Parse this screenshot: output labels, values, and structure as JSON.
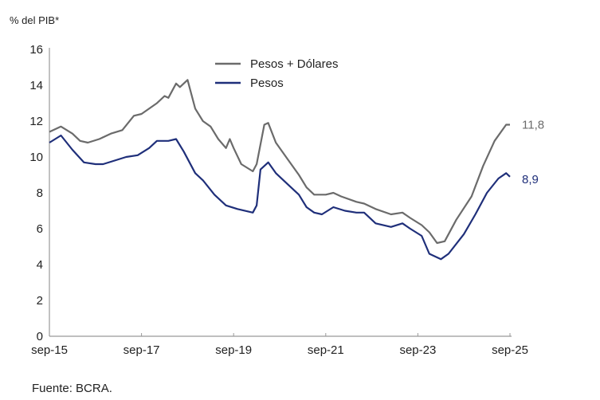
{
  "chart_data": {
    "type": "line",
    "ylabel": "% del PIB*",
    "ylim": [
      0,
      16
    ],
    "yticks": [
      0,
      2,
      4,
      6,
      8,
      10,
      12,
      14,
      16
    ],
    "x_unit": "months since sep-15",
    "xlim": [
      0,
      120
    ],
    "xticks": [
      {
        "x": 0,
        "label": "sep-15"
      },
      {
        "x": 24,
        "label": "sep-17"
      },
      {
        "x": 48,
        "label": "sep-19"
      },
      {
        "x": 72,
        "label": "sep-21"
      },
      {
        "x": 96,
        "label": "sep-23"
      },
      {
        "x": 120,
        "label": "sep-25"
      }
    ],
    "legend_position": "top-center",
    "grid": false,
    "source": "Fuente: BCRA.",
    "series": [
      {
        "name": "Pesos + Dólares",
        "color": "#6b6b6b",
        "end_label": "11,8",
        "x": [
          0,
          3,
          6,
          8,
          10,
          13,
          16,
          19,
          22,
          24,
          28,
          30,
          31,
          33,
          34,
          36,
          38,
          40,
          42,
          44,
          46,
          47,
          48,
          50,
          53,
          54,
          56,
          57,
          59,
          62,
          65,
          67,
          69,
          72,
          74,
          76,
          80,
          82,
          85,
          89,
          92,
          94,
          97,
          99,
          101,
          103,
          106,
          110,
          113,
          116,
          119,
          120
        ],
        "y": [
          11.4,
          11.7,
          11.3,
          10.9,
          10.8,
          11.0,
          11.3,
          11.5,
          12.3,
          12.4,
          13.0,
          13.4,
          13.3,
          14.1,
          13.9,
          14.3,
          12.7,
          12.0,
          11.7,
          11.0,
          10.5,
          11.0,
          10.5,
          9.6,
          9.2,
          9.6,
          11.8,
          11.9,
          10.8,
          9.9,
          9.0,
          8.3,
          7.9,
          7.9,
          8.0,
          7.8,
          7.5,
          7.4,
          7.1,
          6.8,
          6.9,
          6.6,
          6.2,
          5.8,
          5.2,
          5.3,
          6.5,
          7.8,
          9.5,
          10.9,
          11.8,
          11.8
        ]
      },
      {
        "name": "Pesos",
        "color": "#1f2f7a",
        "end_label": "8,9",
        "x": [
          0,
          3,
          6,
          9,
          12,
          14,
          17,
          20,
          23,
          26,
          28,
          31,
          33,
          35,
          38,
          40,
          43,
          46,
          49,
          53,
          54,
          55,
          57,
          59,
          62,
          65,
          67,
          69,
          71,
          74,
          77,
          80,
          82,
          85,
          89,
          92,
          94,
          97,
          99,
          102,
          104,
          108,
          111,
          114,
          117,
          119,
          120
        ],
        "y": [
          10.8,
          11.2,
          10.4,
          9.7,
          9.6,
          9.6,
          9.8,
          10.0,
          10.1,
          10.5,
          10.9,
          10.9,
          11.0,
          10.3,
          9.1,
          8.7,
          7.9,
          7.3,
          7.1,
          6.9,
          7.3,
          9.3,
          9.7,
          9.1,
          8.5,
          7.9,
          7.2,
          6.9,
          6.8,
          7.2,
          7.0,
          6.9,
          6.9,
          6.3,
          6.1,
          6.3,
          6.0,
          5.6,
          4.6,
          4.3,
          4.6,
          5.7,
          6.8,
          8.0,
          8.8,
          9.1,
          8.9
        ]
      }
    ]
  }
}
